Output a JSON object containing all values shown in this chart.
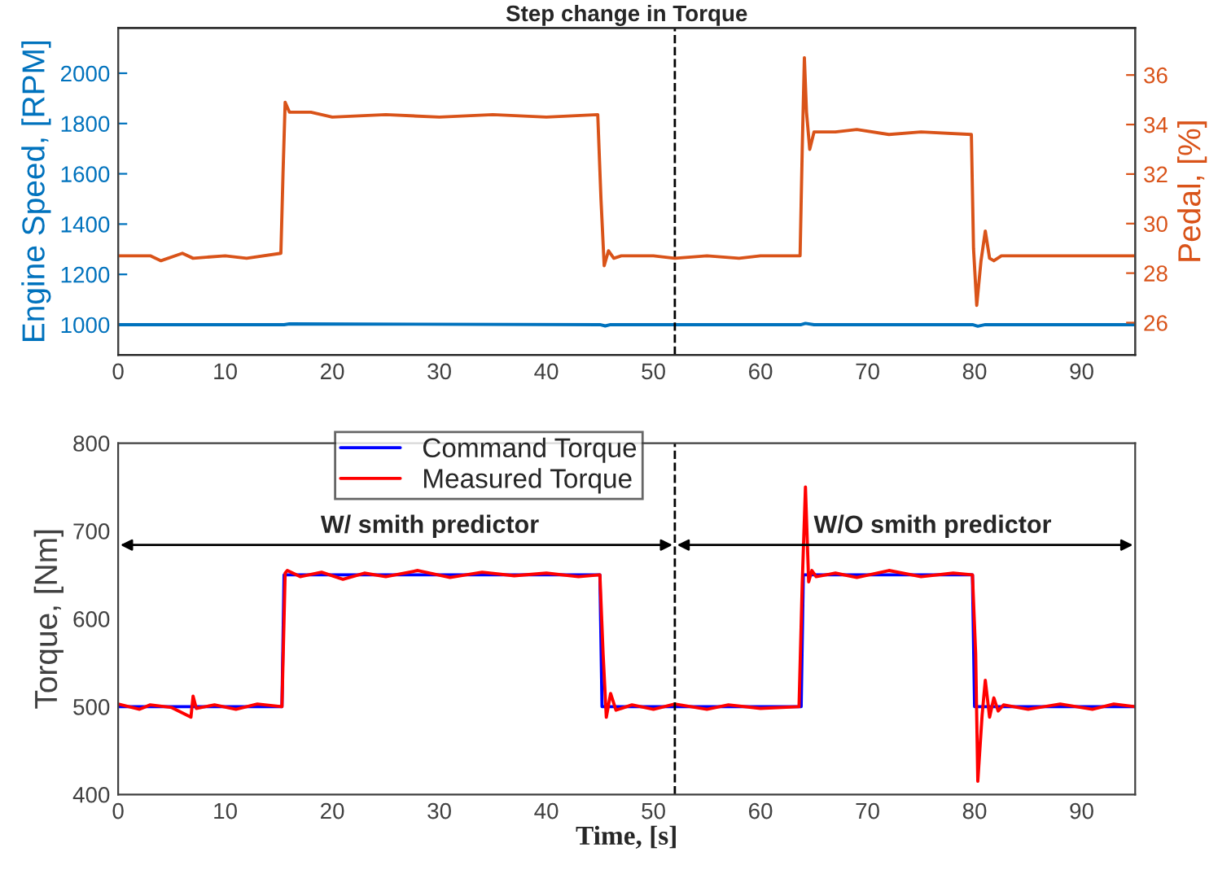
{
  "chart_data": [
    {
      "type": "line",
      "title": "Step change in Torque",
      "ylabel": "Engine Speed, [RPM]",
      "y2label": "Pedal, [%]",
      "xlim": [
        0,
        95
      ],
      "xticks": [
        0,
        10,
        20,
        30,
        40,
        50,
        60,
        70,
        80,
        90
      ],
      "ylim": [
        880,
        2180
      ],
      "yticks": [
        1000,
        1200,
        1400,
        1600,
        1800,
        2000
      ],
      "y2lim": [
        24.7,
        37.9
      ],
      "y2ticks": [
        26,
        28,
        30,
        32,
        34,
        36
      ],
      "grid": false,
      "legend": false,
      "ref_lines": [
        {
          "axis": "x",
          "value": 52,
          "line_style": "dashed",
          "color": "#000000"
        }
      ],
      "series": [
        {
          "color": "#0072bd",
          "x": [
            0,
            15.5,
            16,
            45,
            45.5,
            46,
            63.8,
            64.2,
            65,
            79.8,
            80.3,
            81,
            95
          ],
          "values": [
            1000,
            1000,
            1003,
            1000,
            995,
            1000,
            1000,
            1005,
            1000,
            1000,
            994,
            1000,
            1000
          ]
        },
        {
          "color": "#d95319",
          "axis": "y2",
          "x": [
            0,
            3,
            4,
            6,
            7,
            10,
            12,
            15.2,
            15.4,
            15.6,
            16,
            18,
            20,
            25,
            30,
            35,
            40,
            44.8,
            45.1,
            45.4,
            45.8,
            46.3,
            47,
            50,
            52,
            55,
            58,
            60,
            63.7,
            63.9,
            64.1,
            64.3,
            64.6,
            65,
            67,
            69,
            72,
            75,
            79.7,
            79.9,
            80.2,
            80.6,
            81,
            81.4,
            81.8,
            82.5,
            85,
            90,
            95
          ],
          "values": [
            28.7,
            28.7,
            28.5,
            28.8,
            28.6,
            28.7,
            28.6,
            28.8,
            32,
            34.9,
            34.5,
            34.5,
            34.3,
            34.4,
            34.3,
            34.4,
            34.3,
            34.4,
            31,
            28.3,
            28.9,
            28.6,
            28.7,
            28.7,
            28.6,
            28.7,
            28.6,
            28.7,
            28.7,
            33,
            36.7,
            34.5,
            33,
            33.7,
            33.7,
            33.8,
            33.6,
            33.7,
            33.6,
            29,
            26.7,
            28.5,
            29.7,
            28.6,
            28.5,
            28.7,
            28.7,
            28.7,
            28.7
          ]
        }
      ]
    },
    {
      "type": "line",
      "xlabel": "Time, [s]",
      "ylabel": "Torque, [Nm]",
      "xlim": [
        0,
        95
      ],
      "xticks": [
        0,
        10,
        20,
        30,
        40,
        50,
        60,
        70,
        80,
        90
      ],
      "ylim": [
        400,
        800
      ],
      "yticks": [
        400,
        500,
        600,
        700,
        800
      ],
      "grid": false,
      "legend": "top left",
      "ref_lines": [
        {
          "axis": "x",
          "value": 52,
          "line_style": "dashed",
          "color": "#000000"
        }
      ],
      "annotations": [
        "W/ smith predictor",
        "W/O smith predictor"
      ],
      "series": [
        {
          "name": "Command Torque",
          "color": "#0000ff",
          "x": [
            0,
            15.3,
            15.5,
            45,
            45.2,
            63.8,
            64,
            79.8,
            80,
            95
          ],
          "values": [
            500,
            500,
            650,
            650,
            500,
            500,
            650,
            650,
            500,
            500
          ]
        },
        {
          "name": "Measured Torque",
          "color": "#ff0000",
          "x": [
            0,
            2,
            3,
            5,
            6.8,
            7,
            7.3,
            9,
            11,
            13,
            15.3,
            15.6,
            15.8,
            17,
            19,
            21,
            23,
            25,
            28,
            31,
            34,
            37,
            40,
            43,
            45,
            45.3,
            45.6,
            46,
            46.5,
            48,
            50,
            52,
            55,
            57,
            60,
            63.6,
            63.9,
            64.2,
            64.5,
            64.8,
            65.2,
            67,
            69,
            72,
            75,
            78,
            79.8,
            80.1,
            80.3,
            80.7,
            81,
            81.4,
            81.8,
            82.2,
            82.7,
            85,
            88,
            91,
            93,
            95
          ],
          "values": [
            503,
            497,
            502,
            499,
            488,
            512,
            498,
            502,
            497,
            503,
            500,
            652,
            655,
            648,
            653,
            645,
            652,
            648,
            655,
            647,
            653,
            649,
            652,
            648,
            650,
            560,
            488,
            515,
            496,
            502,
            497,
            503,
            497,
            502,
            498,
            500,
            640,
            750,
            642,
            655,
            648,
            652,
            647,
            655,
            648,
            652,
            650,
            560,
            415,
            490,
            530,
            488,
            510,
            495,
            502,
            497,
            503,
            497,
            503,
            500
          ]
        }
      ]
    }
  ]
}
